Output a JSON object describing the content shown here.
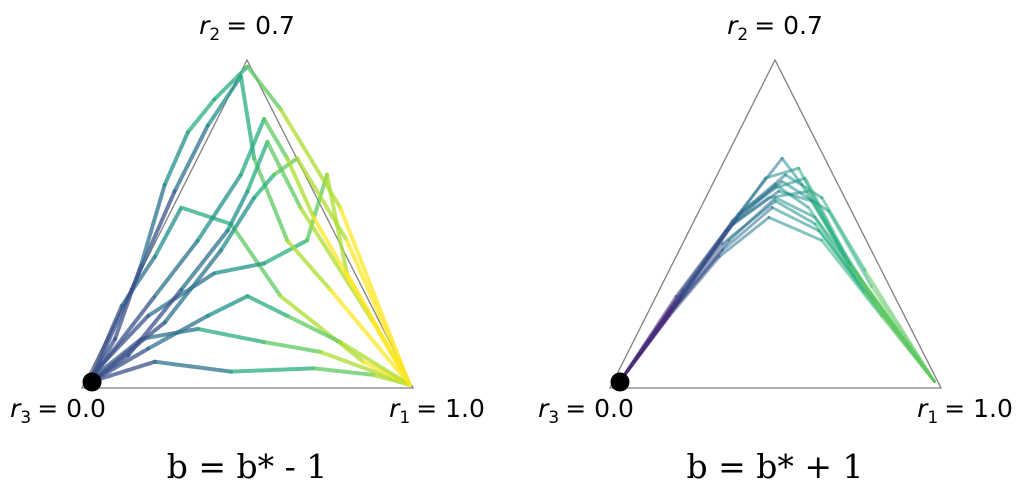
{
  "chart_data": [
    {
      "type": "line",
      "subtype": "ternary-trajectories",
      "title": "b = b* - 1",
      "vertex_labels": {
        "top": {
          "var": "r",
          "sub": "2",
          "value": "= 0.7"
        },
        "left": {
          "var": "r",
          "sub": "3",
          "value": "= 0.0"
        },
        "right": {
          "var": "r",
          "sub": "1",
          "value": "= 1.0"
        }
      },
      "start_point": "left-vertex",
      "colormap": "viridis",
      "paths": [
        [
          [
            0.03,
            0.98
          ],
          [
            0.22,
            0.92
          ],
          [
            0.45,
            0.95
          ],
          [
            0.7,
            0.94
          ],
          [
            0.88,
            0.96
          ],
          [
            0.99,
            0.99
          ]
        ],
        [
          [
            0.03,
            0.97
          ],
          [
            0.18,
            0.85
          ],
          [
            0.35,
            0.82
          ],
          [
            0.55,
            0.86
          ],
          [
            0.72,
            0.89
          ],
          [
            0.99,
            0.99
          ]
        ],
        [
          [
            0.03,
            0.96
          ],
          [
            0.12,
            0.75
          ],
          [
            0.22,
            0.6
          ],
          [
            0.3,
            0.45
          ],
          [
            0.45,
            0.5
          ],
          [
            0.6,
            0.72
          ],
          [
            0.85,
            0.92
          ],
          [
            0.99,
            0.99
          ]
        ],
        [
          [
            0.03,
            0.96
          ],
          [
            0.2,
            0.78
          ],
          [
            0.4,
            0.65
          ],
          [
            0.55,
            0.62
          ],
          [
            0.68,
            0.55
          ],
          [
            0.74,
            0.35
          ],
          [
            0.8,
            0.65
          ],
          [
            0.99,
            0.99
          ]
        ],
        [
          [
            0.03,
            0.97
          ],
          [
            0.15,
            0.7
          ],
          [
            0.28,
            0.4
          ],
          [
            0.38,
            0.2
          ],
          [
            0.48,
            0.05
          ],
          [
            0.52,
            0.3
          ],
          [
            0.62,
            0.55
          ],
          [
            0.75,
            0.7
          ],
          [
            0.99,
            0.99
          ]
        ],
        [
          [
            0.03,
            0.97
          ],
          [
            0.1,
            0.85
          ],
          [
            0.18,
            0.62
          ],
          [
            0.25,
            0.38
          ],
          [
            0.32,
            0.22
          ],
          [
            0.4,
            0.12
          ],
          [
            0.5,
            0.02
          ],
          [
            0.6,
            0.15
          ],
          [
            0.78,
            0.45
          ],
          [
            0.99,
            0.99
          ]
        ],
        [
          [
            0.03,
            0.98
          ],
          [
            0.25,
            0.8
          ],
          [
            0.42,
            0.58
          ],
          [
            0.52,
            0.42
          ],
          [
            0.58,
            0.35
          ],
          [
            0.65,
            0.3
          ],
          [
            0.8,
            0.55
          ],
          [
            0.99,
            0.99
          ]
        ],
        [
          [
            0.03,
            0.98
          ],
          [
            0.2,
            0.88
          ],
          [
            0.38,
            0.78
          ],
          [
            0.5,
            0.72
          ],
          [
            0.62,
            0.78
          ],
          [
            0.78,
            0.86
          ],
          [
            0.99,
            0.99
          ]
        ],
        [
          [
            0.03,
            0.98
          ],
          [
            0.14,
            0.9
          ],
          [
            0.3,
            0.7
          ],
          [
            0.44,
            0.52
          ],
          [
            0.5,
            0.4
          ],
          [
            0.56,
            0.25
          ],
          [
            0.66,
            0.45
          ],
          [
            0.88,
            0.8
          ],
          [
            0.99,
            0.99
          ]
        ],
        [
          [
            0.03,
            0.97
          ],
          [
            0.22,
            0.72
          ],
          [
            0.35,
            0.55
          ],
          [
            0.48,
            0.35
          ],
          [
            0.55,
            0.18
          ],
          [
            0.62,
            0.3
          ],
          [
            0.7,
            0.48
          ],
          [
            0.99,
            0.99
          ]
        ]
      ]
    },
    {
      "type": "line",
      "subtype": "ternary-trajectories",
      "title": "b = b* + 1",
      "vertex_labels": {
        "top": {
          "var": "r",
          "sub": "2",
          "value": "= 0.7"
        },
        "left": {
          "var": "r",
          "sub": "3",
          "value": "= 0.0"
        },
        "right": {
          "var": "r",
          "sub": "1",
          "value": "= 1.0"
        }
      },
      "start_point": "left-vertex",
      "colormap": "viridis",
      "paths": [
        [
          [
            0.03,
            0.98
          ],
          [
            0.2,
            0.72
          ],
          [
            0.35,
            0.52
          ],
          [
            0.5,
            0.38
          ],
          [
            0.6,
            0.45
          ],
          [
            0.75,
            0.68
          ],
          [
            0.98,
            0.98
          ]
        ],
        [
          [
            0.03,
            0.98
          ],
          [
            0.22,
            0.7
          ],
          [
            0.38,
            0.48
          ],
          [
            0.52,
            0.3
          ],
          [
            0.58,
            0.38
          ],
          [
            0.72,
            0.62
          ],
          [
            0.98,
            0.98
          ]
        ],
        [
          [
            0.03,
            0.98
          ],
          [
            0.2,
            0.75
          ],
          [
            0.36,
            0.55
          ],
          [
            0.5,
            0.42
          ],
          [
            0.62,
            0.48
          ],
          [
            0.78,
            0.7
          ],
          [
            0.98,
            0.98
          ]
        ],
        [
          [
            0.03,
            0.98
          ],
          [
            0.21,
            0.73
          ],
          [
            0.37,
            0.5
          ],
          [
            0.48,
            0.42
          ],
          [
            0.6,
            0.4
          ],
          [
            0.74,
            0.66
          ],
          [
            0.98,
            0.98
          ]
        ],
        [
          [
            0.03,
            0.98
          ],
          [
            0.19,
            0.76
          ],
          [
            0.34,
            0.58
          ],
          [
            0.49,
            0.45
          ],
          [
            0.63,
            0.52
          ],
          [
            0.8,
            0.74
          ],
          [
            0.98,
            0.98
          ]
        ],
        [
          [
            0.03,
            0.98
          ],
          [
            0.22,
            0.71
          ],
          [
            0.39,
            0.47
          ],
          [
            0.53,
            0.35
          ],
          [
            0.64,
            0.42
          ],
          [
            0.77,
            0.64
          ],
          [
            0.98,
            0.98
          ]
        ],
        [
          [
            0.03,
            0.98
          ],
          [
            0.2,
            0.74
          ],
          [
            0.35,
            0.53
          ],
          [
            0.47,
            0.36
          ],
          [
            0.57,
            0.33
          ],
          [
            0.71,
            0.6
          ],
          [
            0.98,
            0.98
          ]
        ],
        [
          [
            0.03,
            0.98
          ],
          [
            0.18,
            0.78
          ],
          [
            0.33,
            0.6
          ],
          [
            0.48,
            0.48
          ],
          [
            0.64,
            0.55
          ],
          [
            0.82,
            0.78
          ],
          [
            0.98,
            0.98
          ]
        ],
        [
          [
            0.03,
            0.98
          ],
          [
            0.21,
            0.72
          ],
          [
            0.36,
            0.51
          ],
          [
            0.51,
            0.4
          ],
          [
            0.61,
            0.43
          ],
          [
            0.76,
            0.67
          ],
          [
            0.98,
            0.98
          ]
        ],
        [
          [
            0.03,
            0.98
          ],
          [
            0.23,
            0.7
          ],
          [
            0.4,
            0.46
          ],
          [
            0.52,
            0.37
          ],
          [
            0.66,
            0.46
          ],
          [
            0.79,
            0.69
          ],
          [
            0.98,
            0.98
          ]
        ],
        [
          [
            0.03,
            0.98
          ],
          [
            0.19,
            0.75
          ],
          [
            0.34,
            0.56
          ],
          [
            0.5,
            0.43
          ],
          [
            0.62,
            0.5
          ],
          [
            0.77,
            0.71
          ],
          [
            0.98,
            0.98
          ]
        ],
        [
          [
            0.03,
            0.98
          ],
          [
            0.22,
            0.72
          ],
          [
            0.37,
            0.49
          ],
          [
            0.5,
            0.39
          ],
          [
            0.59,
            0.36
          ],
          [
            0.73,
            0.63
          ],
          [
            0.98,
            0.98
          ]
        ]
      ]
    }
  ]
}
